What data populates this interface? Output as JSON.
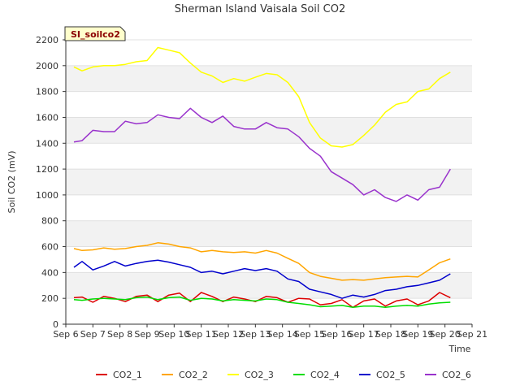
{
  "chart_data": {
    "type": "line",
    "title": "Sherman Island Vaisala Soil CO2",
    "xlabel": "Time",
    "ylabel": "Soil CO2 (mV)",
    "badge": "SI_soilco2",
    "xlim": [
      6,
      21
    ],
    "ylim": [
      0,
      2200
    ],
    "x_ticks": [
      6,
      7,
      8,
      9,
      10,
      11,
      12,
      13,
      14,
      15,
      16,
      17,
      18,
      19,
      20,
      21
    ],
    "x_tick_labels": [
      "Sep 6",
      "Sep 7",
      "Sep 8",
      "Sep 9",
      "Sep 10",
      "Sep 11",
      "Sep 12",
      "Sep 13",
      "Sep 14",
      "Sep 15",
      "Sep 16",
      "Sep 17",
      "Sep 18",
      "Sep 19",
      "Sep 20",
      "Sep 21"
    ],
    "y_ticks": [
      0,
      200,
      400,
      600,
      800,
      1000,
      1200,
      1400,
      1600,
      1800,
      2000,
      2200
    ],
    "grid": true,
    "legend_position": "bottom",
    "x": [
      6.3,
      6.6,
      7.0,
      7.4,
      7.8,
      8.2,
      8.6,
      9.0,
      9.4,
      9.8,
      10.2,
      10.6,
      11.0,
      11.4,
      11.8,
      12.2,
      12.6,
      13.0,
      13.4,
      13.8,
      14.2,
      14.6,
      15.0,
      15.4,
      15.8,
      16.2,
      16.6,
      17.0,
      17.4,
      17.8,
      18.2,
      18.6,
      19.0,
      19.4,
      19.8,
      20.2
    ],
    "series": [
      {
        "name": "CO2_1",
        "color": "#dd0000",
        "values": [
          205,
          210,
          170,
          215,
          200,
          175,
          215,
          225,
          175,
          225,
          240,
          175,
          245,
          215,
          175,
          210,
          195,
          175,
          215,
          205,
          170,
          200,
          195,
          150,
          160,
          190,
          130,
          180,
          195,
          140,
          180,
          195,
          150,
          180,
          245,
          205
        ]
      },
      {
        "name": "CO2_2",
        "color": "#ffa500",
        "values": [
          585,
          570,
          575,
          590,
          580,
          585,
          600,
          610,
          630,
          620,
          600,
          590,
          560,
          570,
          560,
          555,
          560,
          550,
          570,
          550,
          510,
          470,
          400,
          370,
          355,
          340,
          345,
          340,
          350,
          360,
          365,
          370,
          365,
          420,
          475,
          505
        ]
      },
      {
        "name": "CO2_3",
        "color": "#ffff00",
        "values": [
          1990,
          1960,
          1990,
          2000,
          2000,
          2010,
          2030,
          2040,
          2140,
          2120,
          2100,
          2020,
          1950,
          1920,
          1870,
          1900,
          1880,
          1910,
          1940,
          1930,
          1870,
          1760,
          1560,
          1440,
          1380,
          1370,
          1390,
          1460,
          1540,
          1640,
          1700,
          1720,
          1800,
          1820,
          1900,
          1950
        ]
      },
      {
        "name": "CO2_4",
        "color": "#00dd00",
        "values": [
          190,
          185,
          195,
          200,
          195,
          190,
          205,
          210,
          190,
          205,
          210,
          185,
          200,
          195,
          180,
          190,
          185,
          180,
          195,
          190,
          170,
          160,
          150,
          135,
          140,
          145,
          130,
          140,
          140,
          130,
          140,
          145,
          140,
          155,
          165,
          170
        ]
      },
      {
        "name": "CO2_5",
        "color": "#0000cc",
        "values": [
          440,
          485,
          420,
          450,
          485,
          450,
          470,
          485,
          495,
          480,
          460,
          440,
          400,
          410,
          390,
          410,
          430,
          415,
          430,
          410,
          350,
          330,
          270,
          250,
          230,
          200,
          225,
          210,
          230,
          260,
          270,
          290,
          300,
          320,
          340,
          390
        ]
      },
      {
        "name": "CO2_6",
        "color": "#9932cc",
        "values": [
          1410,
          1420,
          1500,
          1490,
          1490,
          1570,
          1550,
          1560,
          1620,
          1600,
          1590,
          1670,
          1600,
          1560,
          1610,
          1530,
          1510,
          1510,
          1560,
          1520,
          1510,
          1450,
          1360,
          1300,
          1180,
          1130,
          1080,
          1000,
          1040,
          980,
          950,
          1000,
          960,
          1040,
          1060,
          1200
        ]
      }
    ]
  }
}
